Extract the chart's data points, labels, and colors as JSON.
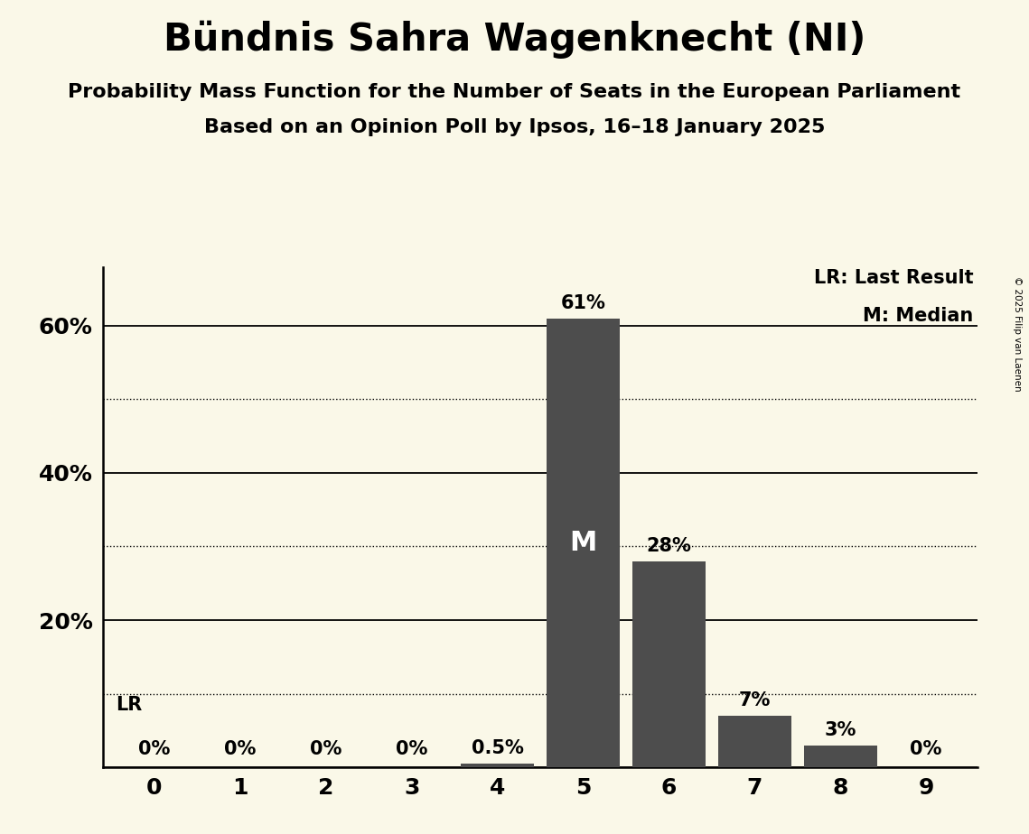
{
  "title": "Bündnis Sahra Wagenknecht (NI)",
  "subtitle1": "Probability Mass Function for the Number of Seats in the European Parliament",
  "subtitle2": "Based on an Opinion Poll by Ipsos, 16–18 January 2025",
  "copyright": "© 2025 Filip van Laenen",
  "seats": [
    0,
    1,
    2,
    3,
    4,
    5,
    6,
    7,
    8,
    9
  ],
  "probabilities": [
    0.0,
    0.0,
    0.0,
    0.0,
    0.5,
    61.0,
    28.0,
    7.0,
    3.0,
    0.0
  ],
  "labels": [
    "0%",
    "0%",
    "0%",
    "0%",
    "0.5%",
    "61%",
    "28%",
    "7%",
    "3%",
    "0%"
  ],
  "bar_color": "#4d4d4d",
  "background_color": "#faf8e8",
  "median": 5,
  "last_result": 0,
  "lr_label": "LR",
  "median_label": "M",
  "legend_lr": "LR: Last Result",
  "legend_m": "M: Median",
  "solid_grid": [
    0,
    20,
    40,
    60
  ],
  "dotted_grid": [
    10,
    30,
    50
  ],
  "lr_line_y": 10,
  "ylim": [
    0,
    68
  ],
  "xlim": [
    -0.6,
    9.6
  ]
}
